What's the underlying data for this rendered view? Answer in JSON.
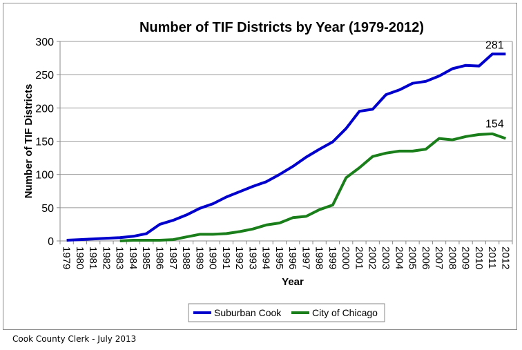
{
  "chart_data": {
    "type": "line",
    "title": "Number of TIF Districts by Year (1979-2012)",
    "xlabel": "Year",
    "ylabel": "Number of TIF Districts",
    "ylim": [
      0,
      300
    ],
    "yticks": [
      0,
      50,
      100,
      150,
      200,
      250,
      300
    ],
    "grid": true,
    "legend": "bottom",
    "x": [
      1979,
      1980,
      1981,
      1982,
      1983,
      1984,
      1985,
      1986,
      1987,
      1988,
      1989,
      1990,
      1991,
      1992,
      1993,
      1994,
      1995,
      1996,
      1997,
      1998,
      1999,
      2000,
      2001,
      2002,
      2003,
      2004,
      2005,
      2006,
      2007,
      2008,
      2009,
      2010,
      2011,
      2012
    ],
    "series": [
      {
        "name": "Suburban Cook",
        "color": "#0000cc",
        "values": [
          1,
          2,
          3,
          4,
          5,
          7,
          11,
          25,
          31,
          39,
          49,
          56,
          66,
          74,
          82,
          89,
          100,
          112,
          126,
          138,
          149,
          169,
          195,
          198,
          220,
          227,
          237,
          240,
          248,
          259,
          264,
          263,
          281,
          281
        ],
        "end_label": "281"
      },
      {
        "name": "City of Chicago",
        "color": "#1a7f1a",
        "values": [
          null,
          null,
          null,
          null,
          0,
          1,
          1,
          1,
          2,
          6,
          10,
          10,
          11,
          14,
          18,
          24,
          27,
          35,
          37,
          47,
          54,
          95,
          110,
          127,
          132,
          135,
          135,
          138,
          154,
          152,
          157,
          160,
          161,
          154
        ],
        "end_label": "154"
      }
    ]
  },
  "footer": "Cook County Clerk - July 2013"
}
